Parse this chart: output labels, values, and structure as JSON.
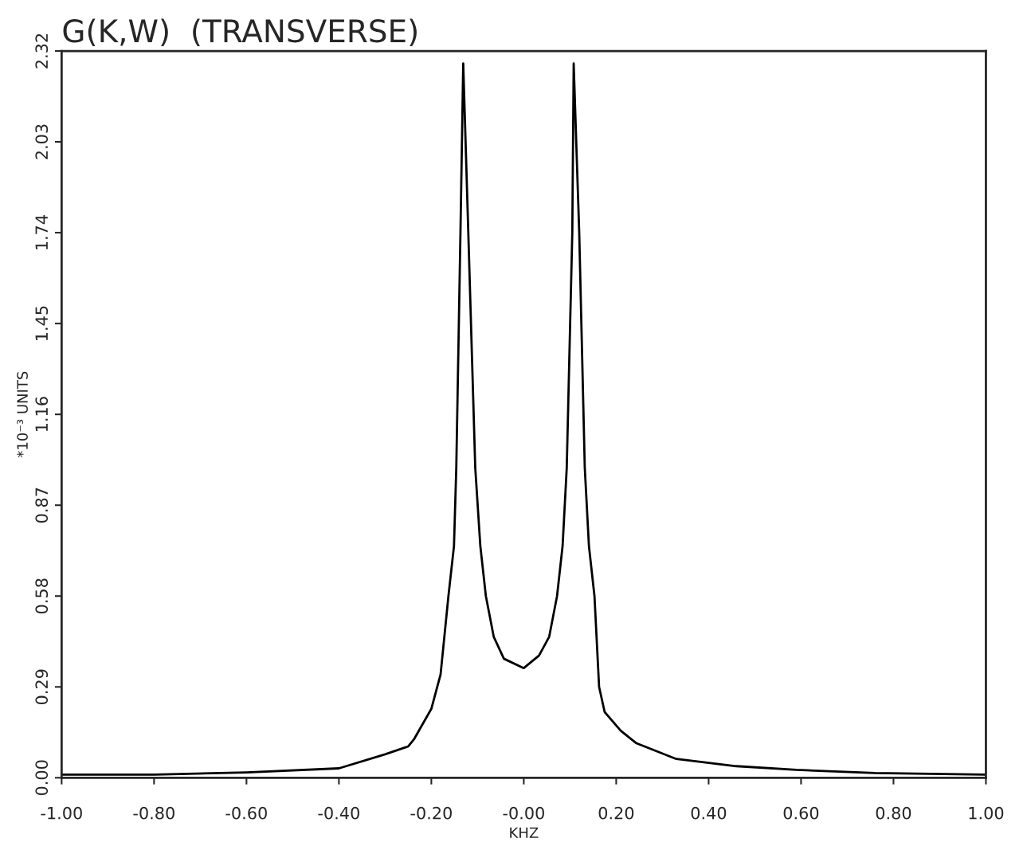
{
  "chart_data": {
    "type": "line",
    "title": "G(K,W)  (TRANSVERSE)",
    "xlabel": "KHZ",
    "ylabel": "*10⁻³ UNITS",
    "x": [
      -1.0,
      -0.8,
      -0.6,
      -0.4,
      -0.3,
      -0.25,
      -0.237,
      -0.2,
      -0.18,
      -0.163,
      -0.151,
      -0.146,
      -0.137,
      -0.131,
      -0.12,
      -0.105,
      -0.094,
      -0.082,
      -0.065,
      -0.043,
      0.0,
      0.033,
      0.055,
      0.072,
      0.084,
      0.093,
      0.105,
      0.108,
      0.12,
      0.132,
      0.141,
      0.153,
      0.163,
      0.175,
      0.21,
      0.244,
      0.33,
      0.46,
      0.59,
      0.76,
      1.0
    ],
    "series": [
      {
        "color": "#000000",
        "values": [
          0.01,
          0.01,
          0.017,
          0.03,
          0.075,
          0.1,
          0.124,
          0.22,
          0.33,
          0.58,
          0.74,
          0.99,
          1.74,
          2.28,
          1.74,
          0.99,
          0.74,
          0.58,
          0.45,
          0.38,
          0.35,
          0.39,
          0.45,
          0.58,
          0.74,
          0.99,
          1.74,
          2.28,
          1.74,
          0.99,
          0.74,
          0.58,
          0.29,
          0.21,
          0.15,
          0.11,
          0.06,
          0.037,
          0.025,
          0.015,
          0.01
        ]
      }
    ],
    "xlim": [
      -1.0,
      1.0
    ],
    "ylim": [
      0.0,
      2.32
    ],
    "xticks": [
      {
        "value": -1.0,
        "label": "-1.00"
      },
      {
        "value": -0.8,
        "label": "-0.80"
      },
      {
        "value": -0.6,
        "label": "-0.60"
      },
      {
        "value": -0.4,
        "label": "-0.40"
      },
      {
        "value": -0.2,
        "label": "-0.20"
      },
      {
        "value": 0.0,
        "label": "-0.00"
      },
      {
        "value": 0.2,
        "label": "0.20"
      },
      {
        "value": 0.4,
        "label": "0.40"
      },
      {
        "value": 0.6,
        "label": "0.60"
      },
      {
        "value": 0.8,
        "label": "0.80"
      },
      {
        "value": 1.0,
        "label": "1.00"
      }
    ],
    "yticks": [
      {
        "value": 0.0,
        "label": "0.00"
      },
      {
        "value": 0.29,
        "label": "0.29"
      },
      {
        "value": 0.58,
        "label": "0.58"
      },
      {
        "value": 0.87,
        "label": "0.87"
      },
      {
        "value": 1.16,
        "label": "1.16"
      },
      {
        "value": 1.45,
        "label": "1.45"
      },
      {
        "value": 1.74,
        "label": "1.74"
      },
      {
        "value": 2.03,
        "label": "2.03"
      },
      {
        "value": 2.32,
        "label": "2.32"
      }
    ],
    "grid": false,
    "marker": "none",
    "line_style": "solid"
  }
}
